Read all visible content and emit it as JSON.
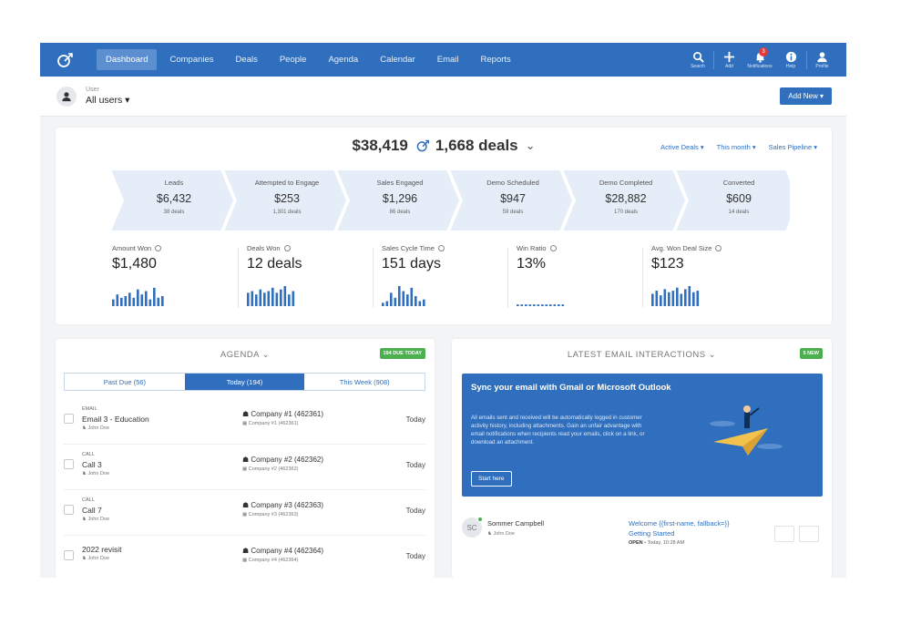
{
  "nav": {
    "items": [
      "Dashboard",
      "Companies",
      "Deals",
      "People",
      "Agenda",
      "Calendar",
      "Email",
      "Reports"
    ],
    "active_index": 0,
    "tools": [
      "Search",
      "Add",
      "Notifications",
      "Help",
      "Profile"
    ],
    "notification_count": "3",
    "colors": {
      "bar": "#2f6fbd",
      "active": "#5b8fd0"
    }
  },
  "userbar": {
    "label": "User",
    "value": "All users ▾",
    "add_new": "Add New ▾"
  },
  "summary": {
    "total_value": "$38,419",
    "total_deals": "1,668 deals",
    "filters": [
      "Active Deals ▾",
      "This month ▾",
      "Sales Pipeline ▾"
    ]
  },
  "pipeline": [
    {
      "name": "Leads",
      "value": "$6,432",
      "count": "38 deals"
    },
    {
      "name": "Attempted to Engage",
      "value": "$253",
      "count": "1,301 deals"
    },
    {
      "name": "Sales Engaged",
      "value": "$1,296",
      "count": "86 deals"
    },
    {
      "name": "Demo Scheduled",
      "value": "$947",
      "count": "59 deals"
    },
    {
      "name": "Demo Completed",
      "value": "$28,882",
      "count": "170 deals"
    },
    {
      "name": "Converted",
      "value": "$609",
      "count": "14 deals"
    }
  ],
  "kpis": [
    {
      "name": "Amount Won",
      "value": "$1,480",
      "spark": [
        4,
        7,
        5,
        6,
        8,
        5,
        10,
        7,
        9,
        4,
        11,
        5,
        6
      ]
    },
    {
      "name": "Deals Won",
      "value": "12 deals",
      "spark": [
        8,
        9,
        7,
        10,
        8,
        9,
        11,
        8,
        10,
        12,
        7,
        9
      ]
    },
    {
      "name": "Sales Cycle Time",
      "value": "151 days",
      "spark": [
        2,
        3,
        8,
        5,
        12,
        9,
        7,
        11,
        6,
        3,
        4
      ]
    },
    {
      "name": "Win Ratio",
      "value": "13%",
      "spark": [
        1,
        1,
        1,
        1,
        1,
        1,
        1,
        1,
        1,
        1,
        1,
        1
      ]
    },
    {
      "name": "Avg. Won Deal Size",
      "value": "$123",
      "spark": [
        8,
        10,
        7,
        11,
        9,
        10,
        12,
        8,
        11,
        13,
        9,
        10
      ]
    }
  ],
  "agenda": {
    "title": "AGENDA ⌄",
    "badge": "194 DUE TODAY",
    "tabs": [
      "Past Due (56)",
      "Today (194)",
      "This Week (908)"
    ],
    "active_tab": 1,
    "rows": [
      {
        "type": "EMAIL",
        "title": "Email 3 - Education",
        "user": "John Doe",
        "company": "Company #1 (462361)",
        "company_sub": "Company #1 (462361)",
        "when": "Today"
      },
      {
        "type": "CALL",
        "title": "Call 3",
        "user": "John Doe",
        "company": "Company #2 (462362)",
        "company_sub": "Company #2 (462362)",
        "when": "Today"
      },
      {
        "type": "CALL",
        "title": "Call 7",
        "user": "John Doe",
        "company": "Company #3 (462363)",
        "company_sub": "Company #3 (462363)",
        "when": "Today"
      },
      {
        "type": "",
        "title": "2022 revisit",
        "user": "John Doe",
        "company": "Company #4 (462364)",
        "company_sub": "Company #4 (462364)",
        "when": "Today"
      }
    ]
  },
  "email": {
    "title": "LATEST EMAIL INTERACTIONS ⌄",
    "badge": "5 NEW",
    "sync_title": "Sync your email with Gmail or Microsoft Outlook",
    "sync_body": "All emails sent and received will be automatically logged in customer activity history, including attachments. Gain an unfair advantage with email notifications when recipients read your emails, click on a link, or download an attachment.",
    "sync_button": "Start here",
    "row": {
      "initials": "SC",
      "name": "Sommer Campbell",
      "user": "John Doe",
      "subject": "Welcome {{first-name, fallback=}} Getting Started",
      "status": "OPEN",
      "time": "• Today, 10:28 AM"
    }
  }
}
